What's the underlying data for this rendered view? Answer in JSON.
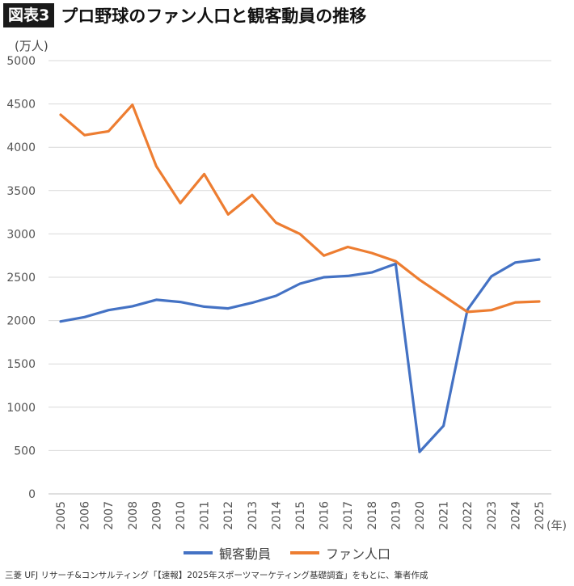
{
  "header": {
    "badge": "図表3",
    "title": "プロ野球のファン人口と観客動員の推移"
  },
  "footer": {
    "source": "三菱 UFJ リサーチ&コンサルティング「【速報】2025年スポーツマーケティング基礎調査」をもとに、筆者作成"
  },
  "chart_data": {
    "type": "line",
    "title": "プロ野球のファン人口と観客動員の推移",
    "ylabel": "(万人)",
    "xlabel": "(年)",
    "ylim": [
      0,
      5000
    ],
    "yticks": [
      "0",
      "500",
      "1000",
      "1500",
      "2000",
      "2500",
      "3000",
      "3500",
      "4000",
      "4500",
      "5000"
    ],
    "x": [
      "2005",
      "2006",
      "2007",
      "2008",
      "2009",
      "2010",
      "2011",
      "2012",
      "2013",
      "2014",
      "2015",
      "2016",
      "2017",
      "2018",
      "2019",
      "2020",
      "2021",
      "2022",
      "2023",
      "2024",
      "2025"
    ],
    "grid": true,
    "legend": "bottom",
    "series": [
      {
        "name": "観客動員",
        "color": "#4472C4",
        "values": [
          1990,
          2040,
          2120,
          2165,
          2240,
          2215,
          2160,
          2140,
          2205,
          2285,
          2425,
          2500,
          2515,
          2555,
          2655,
          485,
          785,
          2125,
          2510,
          2670,
          2705
        ]
      },
      {
        "name": "ファン人口",
        "color": "#ED7D31",
        "values": [
          4375,
          4140,
          4185,
          4490,
          3780,
          3355,
          3690,
          3225,
          3450,
          3130,
          3000,
          2750,
          2850,
          2780,
          2685,
          2470,
          2285,
          2100,
          2120,
          2210,
          2220
        ]
      }
    ]
  }
}
